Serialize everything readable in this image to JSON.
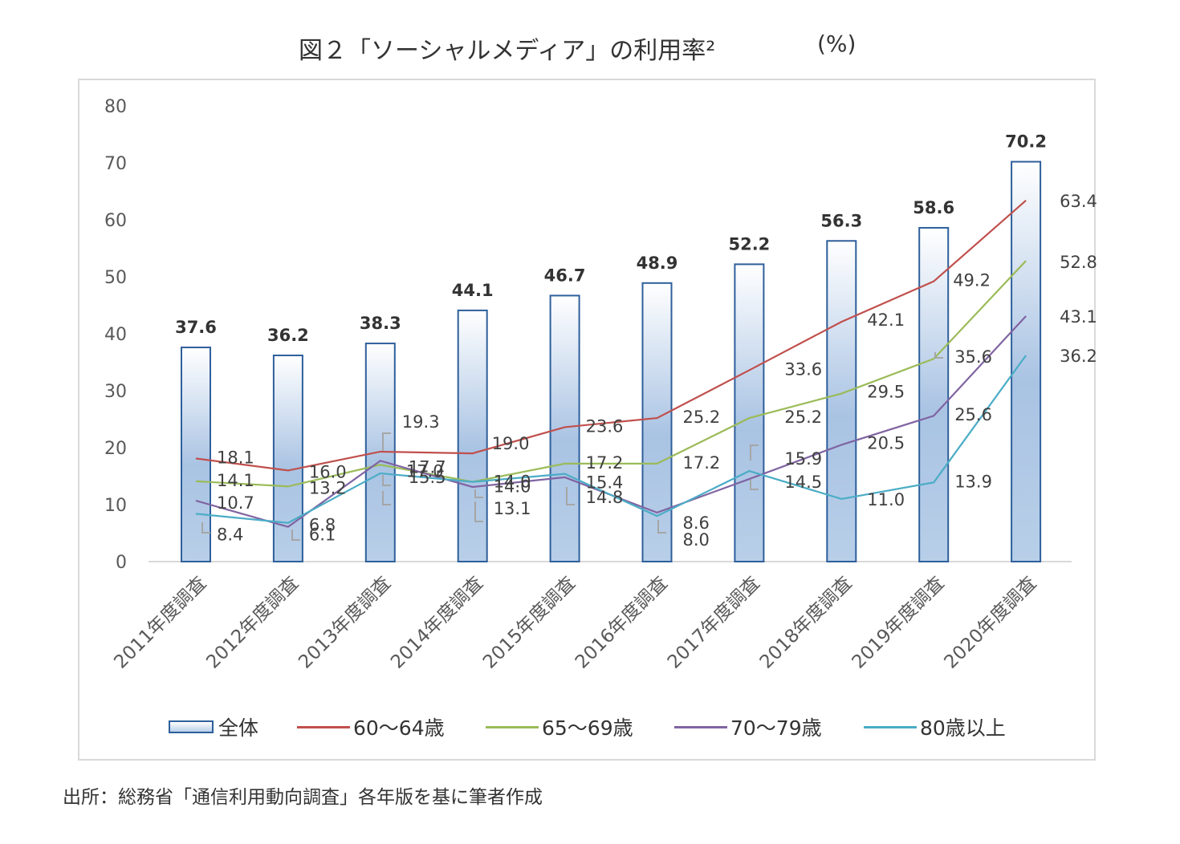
{
  "title": "図２「ソーシャルメディア」の利用率²",
  "unit": "(%)",
  "source": "出所：総務省「通信利用動向調査」各年版を基に筆者作成",
  "colors": {
    "bar_border": "#2e5f9b",
    "bar_top": "#ffffff",
    "bar_bottom": "#b8cfe8",
    "s60": "#c0504d",
    "s65": "#9bbb59",
    "s70": "#8064a2",
    "s80": "#4bacc6"
  },
  "chart_data": {
    "type": "bar+line",
    "categories": [
      "2011年度調査",
      "2012年度調査",
      "2013年度調査",
      "2014年度調査",
      "2015年度調査",
      "2016年度調査",
      "2017年度調査",
      "2018年度調査",
      "2019年度調査",
      "2020年度調査"
    ],
    "ylim": [
      0,
      80
    ],
    "yticks": [
      "0",
      "10",
      "20",
      "30",
      "40",
      "50",
      "60",
      "70",
      "80"
    ],
    "bars": {
      "name": "全体",
      "values": [
        37.6,
        36.2,
        38.3,
        44.1,
        46.7,
        48.9,
        52.2,
        56.3,
        58.6,
        70.2
      ]
    },
    "series": [
      {
        "name": "60～64歳",
        "values": [
          18.1,
          16.0,
          19.3,
          19.0,
          23.6,
          25.2,
          33.6,
          42.1,
          49.2,
          63.4
        ]
      },
      {
        "name": "65～69歳",
        "values": [
          14.1,
          13.2,
          17.0,
          14.0,
          17.2,
          17.2,
          25.2,
          29.5,
          35.6,
          52.8
        ]
      },
      {
        "name": "70～79歳",
        "values": [
          10.7,
          6.1,
          17.7,
          13.1,
          14.8,
          8.6,
          14.5,
          20.5,
          25.6,
          43.1
        ]
      },
      {
        "name": "80歳以上",
        "values": [
          8.4,
          6.8,
          15.5,
          14.0,
          15.4,
          8.0,
          15.9,
          11.0,
          13.9,
          36.2
        ]
      }
    ],
    "legend": [
      "全体",
      "60～64歳",
      "65～69歳",
      "70～79歳",
      "80歳以上"
    ]
  }
}
